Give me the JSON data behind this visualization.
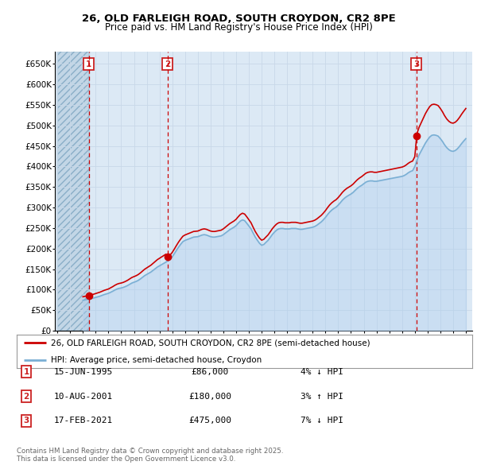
{
  "title1": "26, OLD FARLEIGH ROAD, SOUTH CROYDON, CR2 8PE",
  "title2": "Price paid vs. HM Land Registry's House Price Index (HPI)",
  "legend_line1": "26, OLD FARLEIGH ROAD, SOUTH CROYDON, CR2 8PE (semi-detached house)",
  "legend_line2": "HPI: Average price, semi-detached house, Croydon",
  "footer": "Contains HM Land Registry data © Crown copyright and database right 2025.\nThis data is licensed under the Open Government Licence v3.0.",
  "transactions": [
    {
      "num": 1,
      "date": "15-JUN-1995",
      "price": 86000,
      "pct": "4%",
      "dir": "↓",
      "year": 1995.45
    },
    {
      "num": 2,
      "date": "10-AUG-2001",
      "price": 180000,
      "pct": "3%",
      "dir": "↑",
      "year": 2001.62
    },
    {
      "num": 3,
      "date": "17-FEB-2021",
      "price": 475000,
      "pct": "7%",
      "dir": "↓",
      "year": 2021.12
    }
  ],
  "hpi_x": [
    1995.0,
    1995.17,
    1995.33,
    1995.5,
    1995.67,
    1995.83,
    1996.0,
    1996.17,
    1996.33,
    1996.5,
    1996.67,
    1996.83,
    1997.0,
    1997.17,
    1997.33,
    1997.5,
    1997.67,
    1997.83,
    1998.0,
    1998.17,
    1998.33,
    1998.5,
    1998.67,
    1998.83,
    1999.0,
    1999.17,
    1999.33,
    1999.5,
    1999.67,
    1999.83,
    2000.0,
    2000.17,
    2000.33,
    2000.5,
    2000.67,
    2000.83,
    2001.0,
    2001.17,
    2001.33,
    2001.5,
    2001.67,
    2001.83,
    2002.0,
    2002.17,
    2002.33,
    2002.5,
    2002.67,
    2002.83,
    2003.0,
    2003.17,
    2003.33,
    2003.5,
    2003.67,
    2003.83,
    2004.0,
    2004.17,
    2004.33,
    2004.5,
    2004.67,
    2004.83,
    2005.0,
    2005.17,
    2005.33,
    2005.5,
    2005.67,
    2005.83,
    2006.0,
    2006.17,
    2006.33,
    2006.5,
    2006.67,
    2006.83,
    2007.0,
    2007.17,
    2007.33,
    2007.5,
    2007.67,
    2007.83,
    2008.0,
    2008.17,
    2008.33,
    2008.5,
    2008.67,
    2008.83,
    2009.0,
    2009.17,
    2009.33,
    2009.5,
    2009.67,
    2009.83,
    2010.0,
    2010.17,
    2010.33,
    2010.5,
    2010.67,
    2010.83,
    2011.0,
    2011.17,
    2011.33,
    2011.5,
    2011.67,
    2011.83,
    2012.0,
    2012.17,
    2012.33,
    2012.5,
    2012.67,
    2012.83,
    2013.0,
    2013.17,
    2013.33,
    2013.5,
    2013.67,
    2013.83,
    2014.0,
    2014.17,
    2014.33,
    2014.5,
    2014.67,
    2014.83,
    2015.0,
    2015.17,
    2015.33,
    2015.5,
    2015.67,
    2015.83,
    2016.0,
    2016.17,
    2016.33,
    2016.5,
    2016.67,
    2016.83,
    2017.0,
    2017.17,
    2017.33,
    2017.5,
    2017.67,
    2017.83,
    2018.0,
    2018.17,
    2018.33,
    2018.5,
    2018.67,
    2018.83,
    2019.0,
    2019.17,
    2019.33,
    2019.5,
    2019.67,
    2019.83,
    2020.0,
    2020.17,
    2020.33,
    2020.5,
    2020.67,
    2020.83,
    2021.0,
    2021.17,
    2021.33,
    2021.5,
    2021.67,
    2021.83,
    2022.0,
    2022.17,
    2022.33,
    2022.5,
    2022.67,
    2022.83,
    2023.0,
    2023.17,
    2023.33,
    2023.5,
    2023.67,
    2023.83,
    2024.0,
    2024.17,
    2024.33,
    2024.5,
    2024.67,
    2024.83,
    2025.0
  ],
  "hpi_y": [
    74000,
    75000,
    76000,
    77500,
    78500,
    79500,
    81000,
    82500,
    84000,
    86000,
    88000,
    89500,
    91000,
    93500,
    96000,
    99000,
    101500,
    103000,
    104000,
    105500,
    107500,
    110000,
    113000,
    116000,
    118000,
    120000,
    122500,
    126000,
    130000,
    134000,
    137000,
    140000,
    143000,
    147000,
    151000,
    155000,
    158000,
    161000,
    164000,
    167000,
    171000,
    174000,
    180000,
    188000,
    196000,
    204000,
    211000,
    217000,
    220000,
    222000,
    224000,
    226000,
    228000,
    228500,
    229000,
    231000,
    233000,
    234000,
    233000,
    231000,
    229000,
    228000,
    228000,
    229000,
    230000,
    231000,
    234000,
    238000,
    242000,
    246000,
    249000,
    252000,
    256000,
    262000,
    267000,
    270000,
    268000,
    262000,
    255000,
    248000,
    238000,
    228000,
    220000,
    213000,
    208000,
    210000,
    215000,
    220000,
    227000,
    234000,
    240000,
    245000,
    248000,
    249000,
    249000,
    248000,
    248000,
    248000,
    249000,
    249000,
    249000,
    248000,
    247000,
    247000,
    248000,
    249000,
    250000,
    251000,
    252000,
    254000,
    257000,
    261000,
    265000,
    270000,
    276000,
    283000,
    289000,
    294000,
    298000,
    301000,
    306000,
    312000,
    318000,
    323000,
    327000,
    330000,
    333000,
    337000,
    342000,
    347000,
    351000,
    354000,
    358000,
    362000,
    364000,
    365000,
    365000,
    364000,
    364000,
    365000,
    366000,
    367000,
    368000,
    369000,
    370000,
    371000,
    372000,
    373000,
    374000,
    375000,
    376000,
    378000,
    381000,
    385000,
    388000,
    390000,
    400000,
    415000,
    428000,
    438000,
    448000,
    457000,
    465000,
    472000,
    476000,
    477000,
    476000,
    474000,
    468000,
    461000,
    453000,
    446000,
    441000,
    438000,
    437000,
    439000,
    443000,
    449000,
    456000,
    462000,
    468000
  ],
  "ylim": [
    0,
    680000
  ],
  "xlim_start": 1993.0,
  "xlim_end": 2025.5,
  "hatch_region_end": 1995.45,
  "bg_color": "#dce9f5",
  "hatch_color": "#b8cfe0",
  "grid_color": "#c8d8e8",
  "line_red": "#cc0000",
  "line_blue": "#7aafd4",
  "fill_blue": "#aaccee",
  "marker_color": "#cc0000",
  "vline_color": "#cc0000",
  "box_color": "#cc2222"
}
